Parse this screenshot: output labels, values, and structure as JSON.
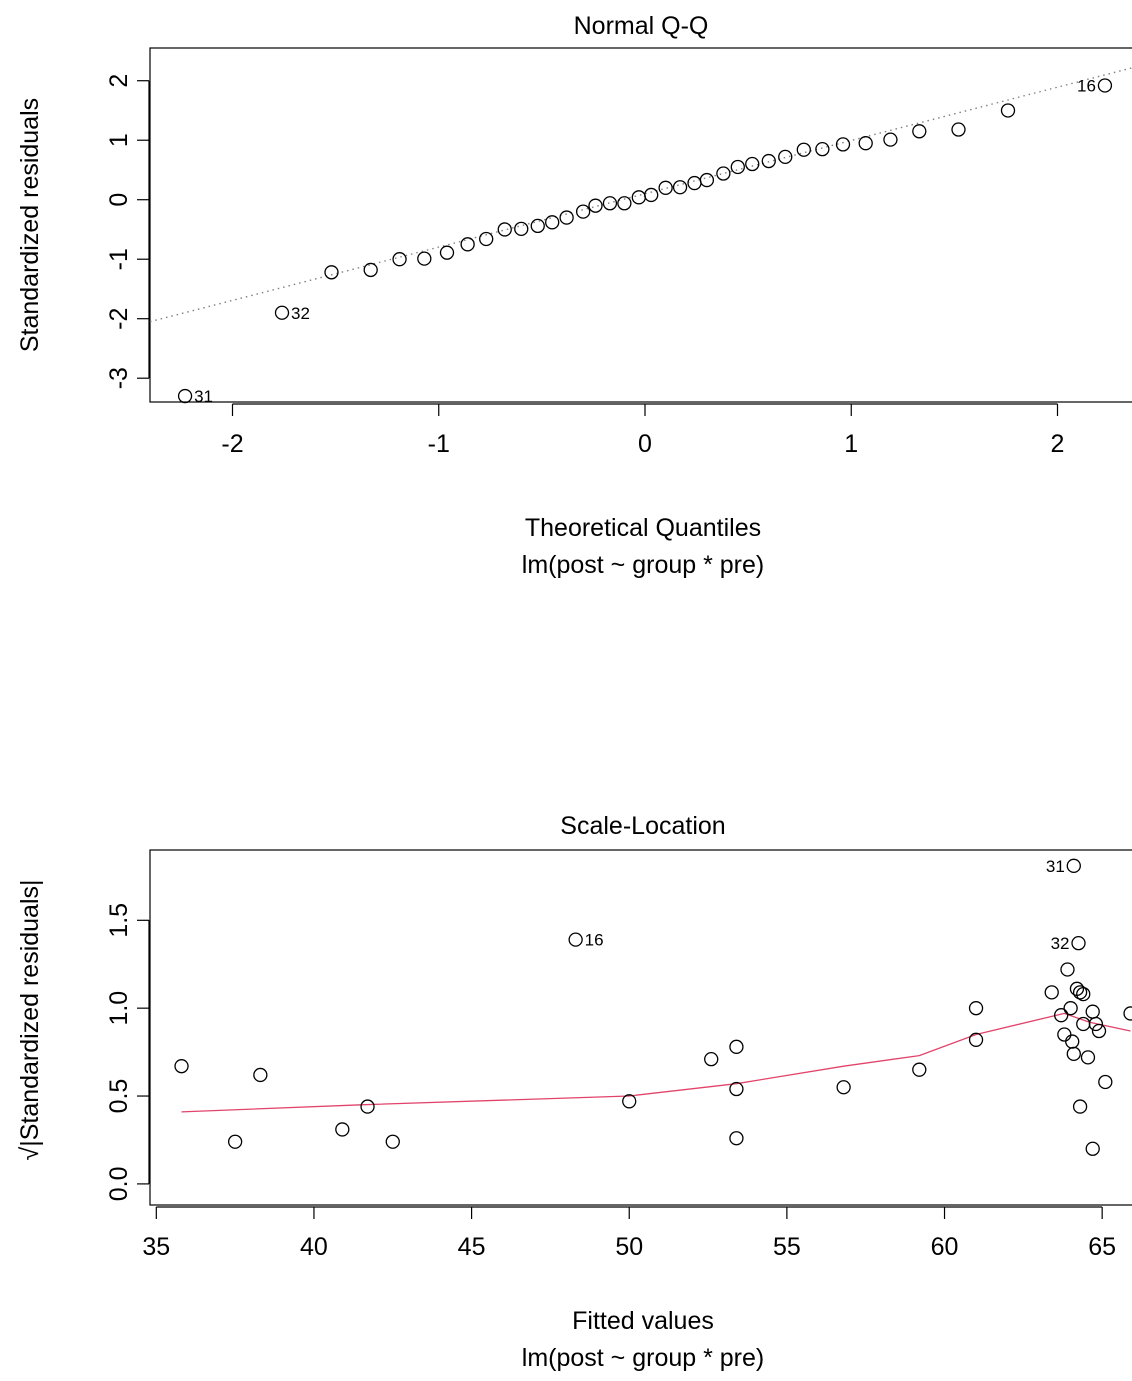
{
  "chart_data": [
    {
      "type": "scatter",
      "title": "Normal Q-Q",
      "xlabel": "Theoretical Quantiles",
      "sublabel": "lm(post ~ group * pre)",
      "ylabel": "Standardized residuals",
      "xlim": [
        -2.4,
        2.4
      ],
      "ylim": [
        -3.4,
        2.55
      ],
      "x_ticks": [
        -2,
        -1,
        0,
        1,
        2
      ],
      "y_ticks": [
        -3,
        -2,
        -1,
        0,
        1,
        2
      ],
      "reference_line": {
        "style": "dotted",
        "color": "#808080",
        "p1": [
          -2.4,
          -2.05
        ],
        "p2": [
          2.4,
          2.25
        ]
      },
      "points": [
        {
          "x": -2.23,
          "y": -3.3,
          "label": "31"
        },
        {
          "x": -1.76,
          "y": -1.9,
          "label": "32"
        },
        {
          "x": -1.52,
          "y": -1.22
        },
        {
          "x": -1.33,
          "y": -1.18
        },
        {
          "x": -1.19,
          "y": -1.0
        },
        {
          "x": -1.07,
          "y": -0.99
        },
        {
          "x": -0.96,
          "y": -0.89
        },
        {
          "x": -0.86,
          "y": -0.75
        },
        {
          "x": -0.77,
          "y": -0.66
        },
        {
          "x": -0.68,
          "y": -0.5
        },
        {
          "x": -0.6,
          "y": -0.49
        },
        {
          "x": -0.52,
          "y": -0.44
        },
        {
          "x": -0.45,
          "y": -0.38
        },
        {
          "x": -0.38,
          "y": -0.3
        },
        {
          "x": -0.3,
          "y": -0.2
        },
        {
          "x": -0.24,
          "y": -0.1
        },
        {
          "x": -0.17,
          "y": -0.06
        },
        {
          "x": -0.1,
          "y": -0.06
        },
        {
          "x": -0.03,
          "y": 0.04
        },
        {
          "x": 0.03,
          "y": 0.08
        },
        {
          "x": 0.1,
          "y": 0.2
        },
        {
          "x": 0.17,
          "y": 0.21
        },
        {
          "x": 0.24,
          "y": 0.28
        },
        {
          "x": 0.3,
          "y": 0.33
        },
        {
          "x": 0.38,
          "y": 0.44
        },
        {
          "x": 0.45,
          "y": 0.55
        },
        {
          "x": 0.52,
          "y": 0.6
        },
        {
          "x": 0.6,
          "y": 0.65
        },
        {
          "x": 0.68,
          "y": 0.72
        },
        {
          "x": 0.77,
          "y": 0.84
        },
        {
          "x": 0.86,
          "y": 0.85
        },
        {
          "x": 0.96,
          "y": 0.93
        },
        {
          "x": 1.07,
          "y": 0.95
        },
        {
          "x": 1.19,
          "y": 1.01
        },
        {
          "x": 1.33,
          "y": 1.15
        },
        {
          "x": 1.52,
          "y": 1.18
        },
        {
          "x": 1.76,
          "y": 1.5
        },
        {
          "x": 2.23,
          "y": 1.92,
          "label": "16"
        }
      ]
    },
    {
      "type": "scatter",
      "title": "Scale-Location",
      "xlabel": "Fitted values",
      "sublabel": "lm(post ~ group * pre)",
      "ylabel": "√|Standardized residuals|",
      "xlim": [
        34.8,
        66.2
      ],
      "ylim": [
        -0.12,
        1.9
      ],
      "x_ticks": [
        35,
        40,
        45,
        50,
        55,
        60,
        65
      ],
      "y_ticks": [
        0.0,
        0.5,
        1.0,
        1.5
      ],
      "y_tick_labels": [
        "0.0",
        "0.5",
        "1.0",
        "1.5"
      ],
      "smoother": {
        "color": "#e2436b",
        "points": [
          [
            35.8,
            0.41
          ],
          [
            41.5,
            0.45
          ],
          [
            50.0,
            0.5
          ],
          [
            53.4,
            0.57
          ],
          [
            56.8,
            0.67
          ],
          [
            59.2,
            0.73
          ],
          [
            61.0,
            0.85
          ],
          [
            63.8,
            0.97
          ],
          [
            64.6,
            0.92
          ],
          [
            65.9,
            0.87
          ]
        ]
      },
      "points": [
        {
          "x": 35.8,
          "y": 0.67
        },
        {
          "x": 37.5,
          "y": 0.24
        },
        {
          "x": 38.3,
          "y": 0.62
        },
        {
          "x": 40.9,
          "y": 0.31
        },
        {
          "x": 41.7,
          "y": 0.44
        },
        {
          "x": 42.5,
          "y": 0.24
        },
        {
          "x": 48.3,
          "y": 1.39,
          "label": "16"
        },
        {
          "x": 50.0,
          "y": 0.47
        },
        {
          "x": 52.6,
          "y": 0.71
        },
        {
          "x": 53.4,
          "y": 0.78
        },
        {
          "x": 53.4,
          "y": 0.54
        },
        {
          "x": 53.4,
          "y": 0.26
        },
        {
          "x": 56.8,
          "y": 0.55
        },
        {
          "x": 59.2,
          "y": 0.65
        },
        {
          "x": 61.0,
          "y": 1.0
        },
        {
          "x": 61.0,
          "y": 0.82
        },
        {
          "x": 63.4,
          "y": 1.09
        },
        {
          "x": 63.7,
          "y": 0.96
        },
        {
          "x": 63.8,
          "y": 0.85
        },
        {
          "x": 63.9,
          "y": 1.22
        },
        {
          "x": 64.0,
          "y": 1.0
        },
        {
          "x": 64.05,
          "y": 0.81
        },
        {
          "x": 64.1,
          "y": 0.74
        },
        {
          "x": 64.1,
          "y": 1.81,
          "label": "31"
        },
        {
          "x": 64.2,
          "y": 1.11
        },
        {
          "x": 64.25,
          "y": 1.37,
          "label": "32"
        },
        {
          "x": 64.3,
          "y": 1.09
        },
        {
          "x": 64.3,
          "y": 0.44
        },
        {
          "x": 64.4,
          "y": 1.08
        },
        {
          "x": 64.4,
          "y": 0.91
        },
        {
          "x": 64.55,
          "y": 0.72
        },
        {
          "x": 64.7,
          "y": 0.98
        },
        {
          "x": 64.7,
          "y": 0.2
        },
        {
          "x": 64.8,
          "y": 0.91
        },
        {
          "x": 64.9,
          "y": 0.87
        },
        {
          "x": 65.1,
          "y": 0.58
        },
        {
          "x": 65.9,
          "y": 0.97
        }
      ]
    }
  ]
}
